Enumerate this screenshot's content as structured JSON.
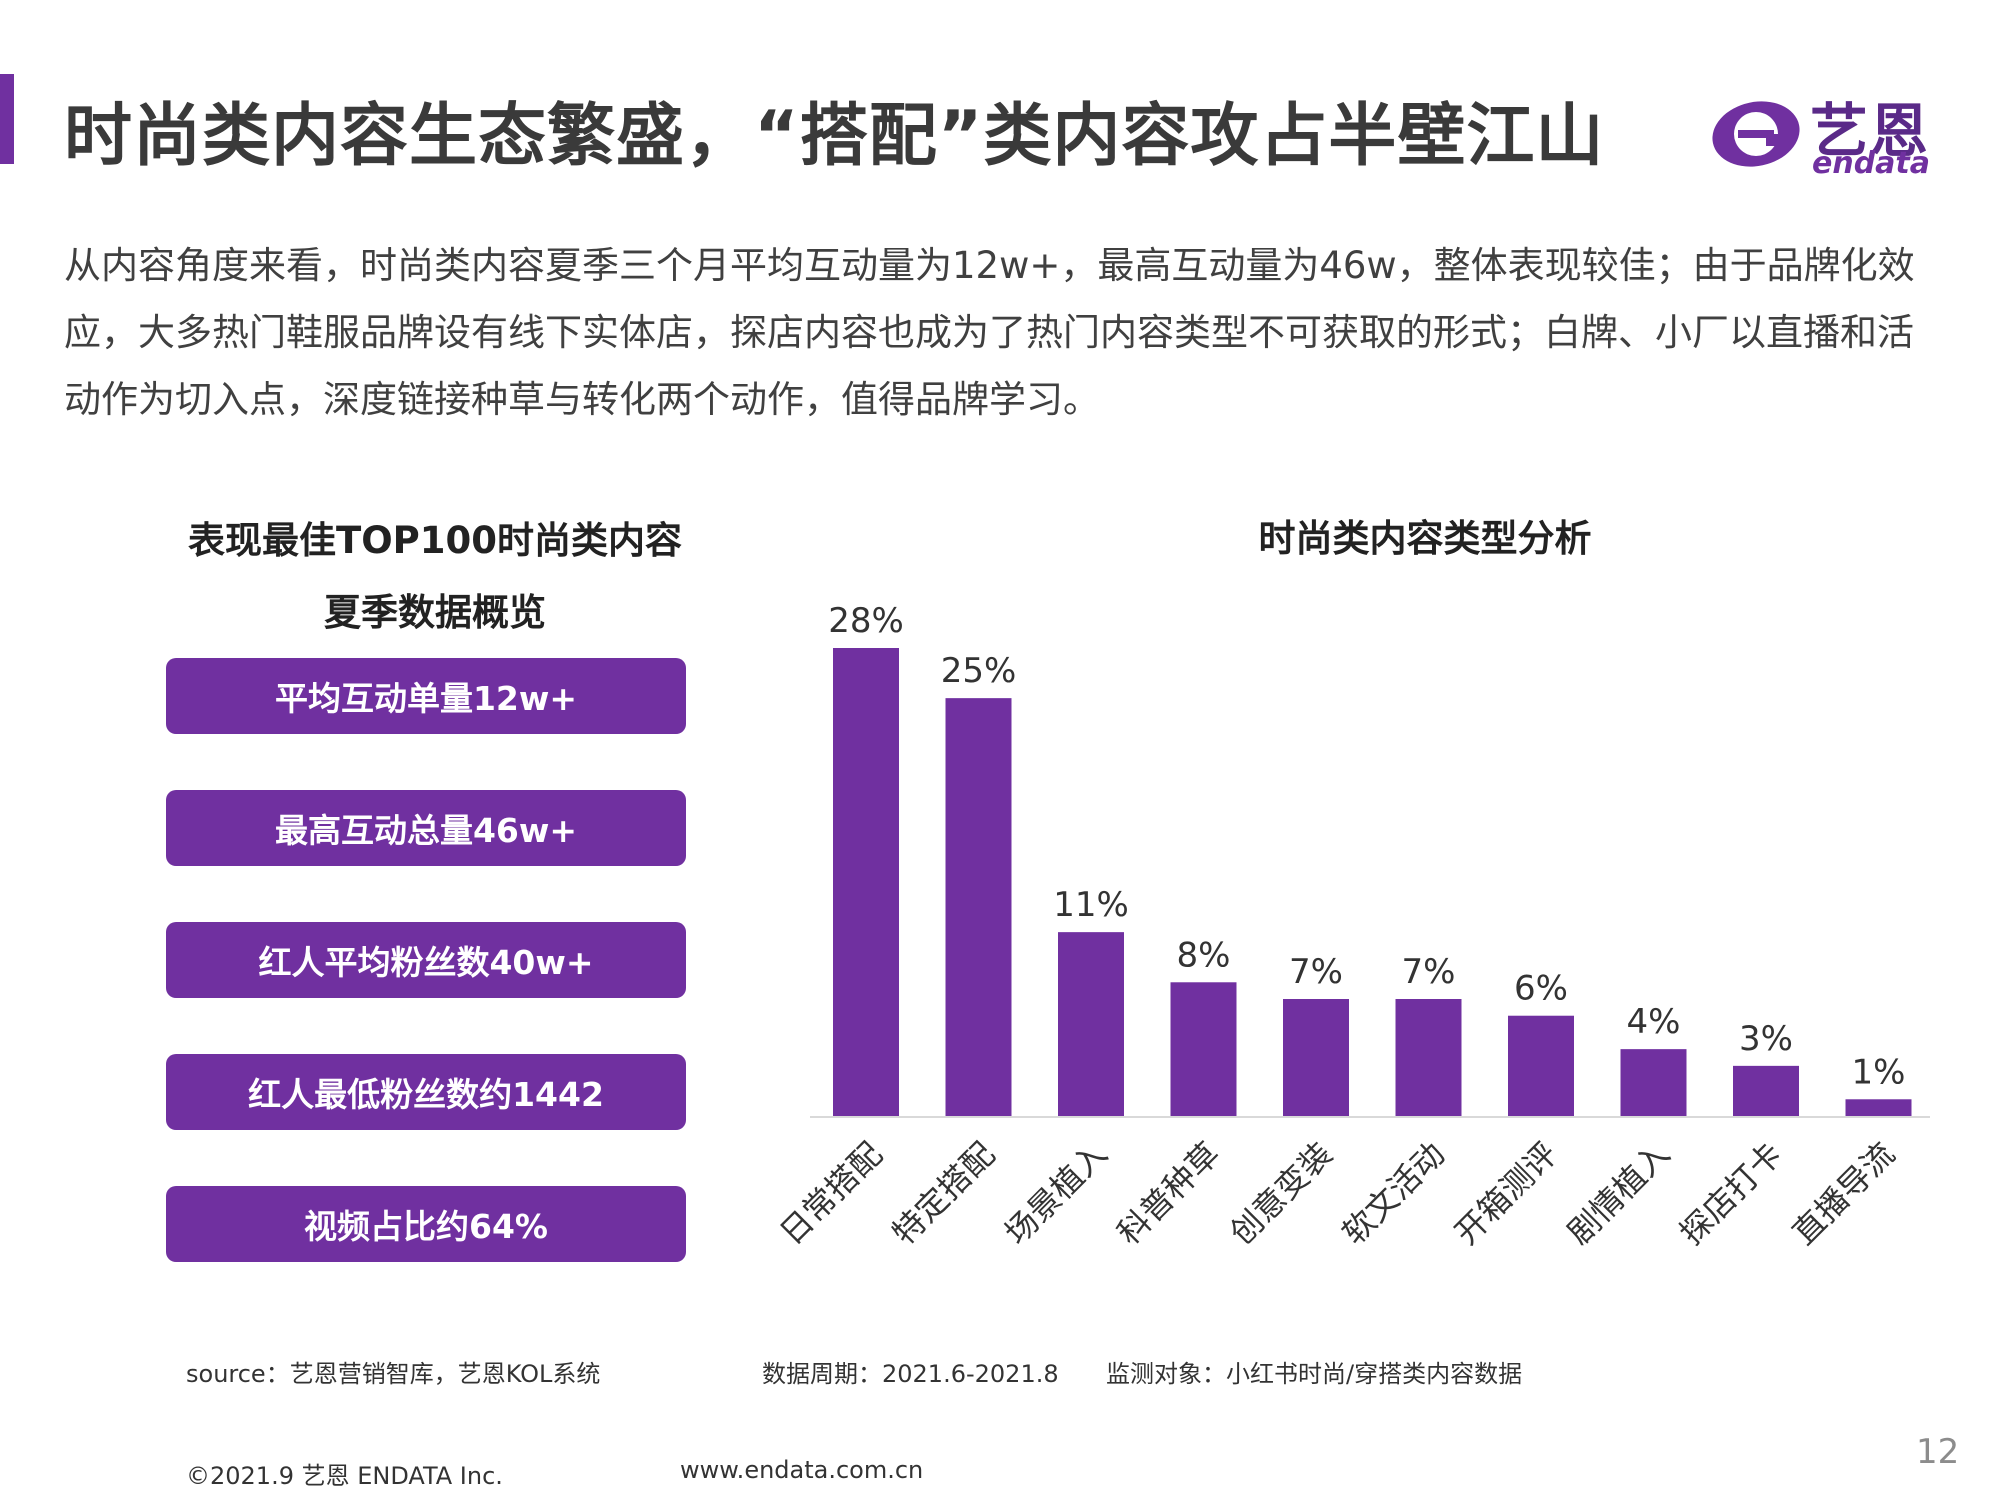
{
  "header": {
    "title": "时尚类内容生态繁盛，“搭配”类内容攻占半壁江山",
    "logo": {
      "name_cn": "艺恩",
      "name_en": "endata"
    }
  },
  "intro": "从内容角度来看，时尚类内容夏季三个月平均互动量为12w+，最高互动量为46w，整体表现较佳；由于品牌化效应，大多热门鞋服品牌设有线下实体店，探店内容也成为了热门内容类型不可获取的形式；白牌、小厂以直播和活动作为切入点，深度链接种草与转化两个动作，值得品牌学习。",
  "left_panel": {
    "title_line1": "表现最佳TOP100时尚类内容",
    "title_line2": "夏季数据概览",
    "stats": [
      "平均互动单量12w+",
      "最高互动总量46w+",
      "红人平均粉丝数40w+",
      "红人最低粉丝数约1442",
      "视频占比约64%"
    ]
  },
  "chart_data": {
    "type": "bar",
    "title": "时尚类内容类型分析",
    "categories": [
      "日常搭配",
      "特定搭配",
      "场景植入",
      "科普种草",
      "创意变装",
      "软文活动",
      "开箱测评",
      "剧情植入",
      "探店打卡",
      "直播导流"
    ],
    "values": [
      28,
      25,
      11,
      8,
      7,
      7,
      6,
      4,
      3,
      1
    ],
    "value_labels": [
      "28%",
      "25%",
      "11%",
      "8%",
      "7%",
      "7%",
      "6%",
      "4%",
      "3%",
      "1%"
    ],
    "unit": "%",
    "ylim": [
      0,
      28
    ],
    "grid": false,
    "legend": "none",
    "bar_color": "#7030a0"
  },
  "footer": {
    "source": "source：艺恩营销智库，艺恩KOL系统",
    "period": "数据周期：2021.6-2021.8",
    "subject": "监测对象：小红书时尚/穿搭类内容数据",
    "copyright": "©2021.9 艺恩 ENDATA Inc.",
    "website": "www.endata.com.cn",
    "page_number": "12"
  },
  "colors": {
    "accent": "#7030a0",
    "title_text": "#3a3a3a",
    "body_text": "#404040"
  },
  "icons": {
    "logo_mark": "endata-e-logo-icon"
  }
}
